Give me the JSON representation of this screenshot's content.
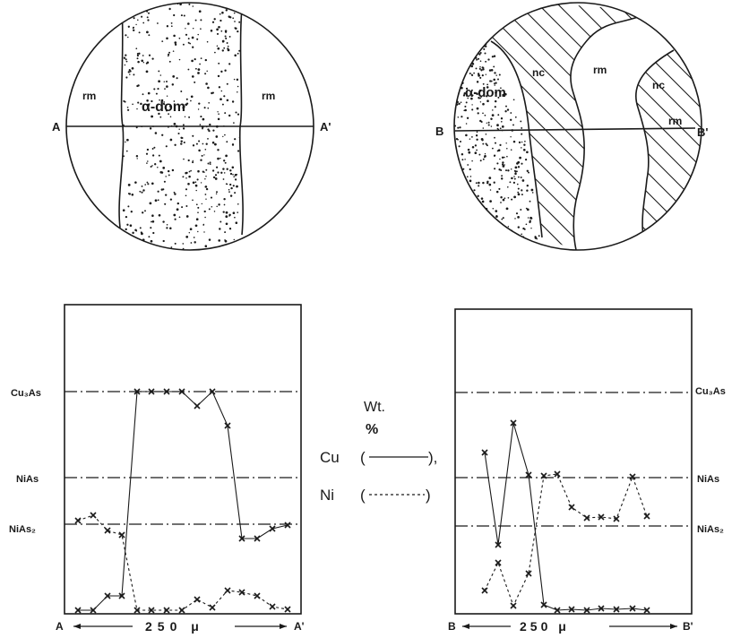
{
  "left_circle": {
    "label_left": "A",
    "label_right": "A'",
    "region_rm_left": "rm",
    "region_alpha": "α-dom",
    "region_rm_right": "rm"
  },
  "right_circle": {
    "label_left": "B",
    "label_right": "B'",
    "region_alpha": "α-dom",
    "region_nc_1": "nc",
    "region_rm": "rm",
    "region_nc_2": "nc",
    "region_rm_small": "rm"
  },
  "left_plot": {
    "ref_cu3as": "Cu₃As",
    "ref_nias": "NiAs",
    "ref_nias2": "NiAs₂",
    "axis_left": "A",
    "axis_right": "A'",
    "axis_scale": "250 μ"
  },
  "right_plot": {
    "ref_cu3as": "Cu₃As",
    "ref_nias": "NiAs",
    "ref_nias2": "NiAs₂",
    "axis_left": "B",
    "axis_right": "B'",
    "axis_scale": "250 μ"
  },
  "legend": {
    "wt": "Wt.",
    "pct": "%",
    "cu": "Cu",
    "cu_paren_open": "(",
    "cu_paren_close": "),",
    "ni": "Ni",
    "ni_paren_open": "(",
    "ni_paren_close": ")"
  },
  "colors": {
    "ink": "#1a1a1a",
    "paper": "#ffffff"
  }
}
